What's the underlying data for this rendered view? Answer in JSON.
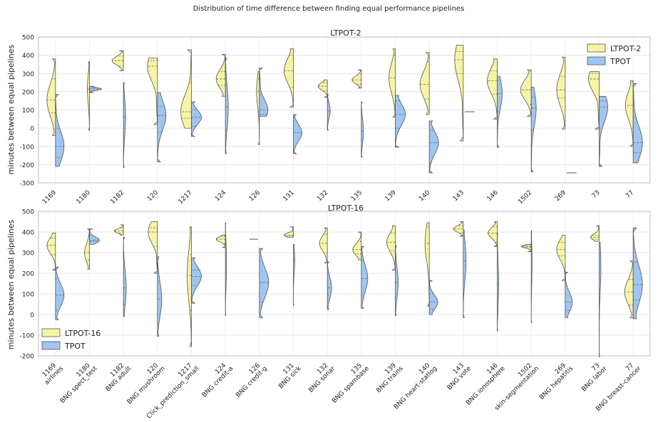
{
  "figure": {
    "suptitle": "Distribution of time difference between finding equal performance pipelines",
    "colors": {
      "ltpot": "#f7f4a6",
      "tpot": "#9fc5f0",
      "grid": "#dddddd",
      "axis": "#bbbbbb",
      "edge": "#555555"
    }
  },
  "chart_data": [
    {
      "type": "violin",
      "title": "LTPOT-2",
      "ylabel": "minutes between equal pipelines",
      "ylim": [
        -300,
        500
      ],
      "yticks": [
        -300,
        -200,
        -100,
        0,
        100,
        200,
        300,
        400,
        500
      ],
      "grid": true,
      "legend": {
        "position": "top-right",
        "entries": [
          "LTPOT-2",
          "TPOT"
        ]
      },
      "categories": [
        "1169",
        "1180",
        "1182",
        "120",
        "1217",
        "124",
        "126",
        "131",
        "132",
        "135",
        "139",
        "140",
        "143",
        "146",
        "1502",
        "269",
        "73",
        "77"
      ],
      "series": [
        {
          "name": "LTPOT-2",
          "violins": [
            {
              "min": -40,
              "max": 380,
              "w": 0.6,
              "q": [
                85,
                155,
                270
              ]
            },
            {
              "min": -10,
              "max": 365,
              "w": 0.15,
              "q": [
                125,
                215,
                310
              ]
            },
            {
              "min": 315,
              "max": 425,
              "w": 0.8,
              "q": [
                340,
                370,
                395
              ]
            },
            {
              "min": 20,
              "max": 385,
              "w": 0.7,
              "q": [
                130,
                340,
                370
              ]
            },
            {
              "min": 0,
              "max": 430,
              "w": 0.75,
              "q": [
                55,
                90,
                250
              ]
            },
            {
              "min": 175,
              "max": 405,
              "w": 0.65,
              "q": [
                235,
                270,
                310
              ]
            },
            {
              "min": -90,
              "max": 310,
              "w": 0.2,
              "q": [
                90,
                200,
                270
              ]
            },
            {
              "min": 115,
              "max": 435,
              "w": 0.65,
              "q": [
                225,
                315,
                400
              ]
            },
            {
              "min": 170,
              "max": 265,
              "w": 0.65,
              "q": [
                205,
                230,
                250
              ]
            },
            {
              "min": 220,
              "max": 320,
              "w": 0.65,
              "q": [
                240,
                265,
                295
              ]
            },
            {
              "min": 60,
              "max": 435,
              "w": 0.45,
              "q": [
                125,
                275,
                400
              ]
            },
            {
              "min": 75,
              "max": 415,
              "w": 0.65,
              "q": [
                160,
                240,
                365
              ]
            },
            {
              "min": -70,
              "max": 455,
              "w": 0.6,
              "q": [
                300,
                375,
                420
              ]
            },
            {
              "min": 50,
              "max": 380,
              "w": 0.7,
              "q": [
                185,
                260,
                315
              ]
            },
            {
              "min": 65,
              "max": 320,
              "w": 0.75,
              "q": [
                130,
                210,
                315
              ]
            },
            {
              "min": -5,
              "max": 390,
              "w": 0.6,
              "q": [
                165,
                210,
                285
              ]
            },
            {
              "min": -5,
              "max": 310,
              "w": 0.75,
              "q": [
                100,
                270,
                300
              ]
            },
            {
              "min": -100,
              "max": 260,
              "w": 0.55,
              "q": [
                0,
                125,
                255
              ]
            }
          ]
        },
        {
          "name": "TPOT",
          "violins": [
            {
              "min": -210,
              "max": 185,
              "w": 0.6,
              "q": [
                -160,
                -100,
                0
              ]
            },
            {
              "min": 195,
              "max": 230,
              "w": 0.85,
              "q": [
                205,
                215,
                220
              ]
            },
            {
              "min": -215,
              "max": 250,
              "w": 0.15,
              "q": [
                -60,
                60,
                160
              ]
            },
            {
              "min": -185,
              "max": 195,
              "w": 0.6,
              "q": [
                -20,
                70,
                120
              ]
            },
            {
              "min": -45,
              "max": 145,
              "w": 0.7,
              "q": [
                10,
                60,
                100
              ]
            },
            {
              "min": -140,
              "max": 385,
              "w": 0.2,
              "q": [
                -10,
                115,
                285
              ]
            },
            {
              "min": 65,
              "max": 330,
              "w": 0.6,
              "q": [
                75,
                100,
                180
              ]
            },
            {
              "min": -140,
              "max": 75,
              "w": 0.6,
              "q": [
                -135,
                -25,
                60
              ]
            },
            {
              "min": -10,
              "max": 185,
              "w": 0.2,
              "q": [
                45,
                95,
                145
              ]
            },
            {
              "min": -160,
              "max": 145,
              "w": 0.15,
              "q": [
                -60,
                -15,
                60
              ]
            },
            {
              "min": -105,
              "max": 180,
              "w": 0.7,
              "q": [
                0,
                75,
                150
              ]
            },
            {
              "min": -245,
              "max": 40,
              "w": 0.65,
              "q": [
                -190,
                -80,
                -10
              ]
            },
            {
              "min": 90,
              "max": 90,
              "w": 0.7,
              "q": []
            },
            {
              "min": -105,
              "max": 285,
              "w": 0.35,
              "q": [
                90,
                190,
                265
              ]
            },
            {
              "min": -240,
              "max": 225,
              "w": 0.35,
              "q": [
                -10,
                110,
                170
              ]
            },
            {
              "min": -245,
              "max": -245,
              "w": 0.7,
              "q": []
            },
            {
              "min": -210,
              "max": 175,
              "w": 0.6,
              "q": [
                0,
                115,
                150
              ]
            },
            {
              "min": -190,
              "max": 245,
              "w": 0.65,
              "q": [
                -135,
                -80,
                60
              ]
            }
          ]
        }
      ]
    },
    {
      "type": "violin",
      "title": "LTPOT-16",
      "ylabel": "minutes between equal pipelines",
      "ylim": [
        -200,
        500
      ],
      "yticks": [
        -200,
        -100,
        0,
        100,
        200,
        300,
        400,
        500
      ],
      "grid": true,
      "legend": {
        "position": "bottom-left",
        "entries": [
          "LTPOT-16",
          "TPOT"
        ]
      },
      "categories": [
        "1169\nairlines",
        "1180\nBNG spect_test",
        "1182\nBNG adult",
        "120\nBNG mushroom",
        "1217\nClick_prediction_small",
        "124\nBNG credit-a",
        "126\nBNG credit-g",
        "131\nBNG sick",
        "132\nBNG sonar",
        "135\nBNG spambase",
        "139\nBNG trains",
        "140\nBNG heart-statlog",
        "143\nBNG vote",
        "146\nBNG ionosphere",
        "1502\nskin-segmentation",
        "269\nBNG hepatitis",
        "73\nBNG labor",
        "77\nBNG breast-cancer"
      ],
      "series": [
        {
          "name": "LTPOT-16",
          "violins": [
            {
              "min": 215,
              "max": 395,
              "w": 0.6,
              "q": [
                290,
                335,
                370
              ]
            },
            {
              "min": 220,
              "max": 415,
              "w": 0.35,
              "q": [
                265,
                300,
                380
              ]
            },
            {
              "min": 385,
              "max": 435,
              "w": 0.65,
              "q": [
                395,
                405,
                420
              ]
            },
            {
              "min": 200,
              "max": 450,
              "w": 0.65,
              "q": [
                330,
                400,
                420
              ]
            },
            {
              "min": -155,
              "max": 425,
              "w": 0.3,
              "q": [
                20,
                190,
                290
              ]
            },
            {
              "min": 325,
              "max": 385,
              "w": 0.65,
              "q": [
                345,
                365,
                380
              ]
            },
            {
              "min": 365,
              "max": 365,
              "w": 0.6,
              "q": []
            },
            {
              "min": 375,
              "max": 425,
              "w": 0.65,
              "q": [
                380,
                385,
                400
              ]
            },
            {
              "min": 250,
              "max": 420,
              "w": 0.55,
              "q": [
                300,
                345,
                390
              ]
            },
            {
              "min": 265,
              "max": 400,
              "w": 0.6,
              "q": [
                295,
                315,
                355
              ]
            },
            {
              "min": 215,
              "max": 430,
              "w": 0.6,
              "q": [
                310,
                350,
                395
              ]
            },
            {
              "min": 40,
              "max": 445,
              "w": 0.3,
              "q": [
                190,
                345,
                425
              ]
            },
            {
              "min": 380,
              "max": 450,
              "w": 0.7,
              "q": [
                395,
                415,
                430
              ]
            },
            {
              "min": 330,
              "max": 450,
              "w": 0.65,
              "q": [
                350,
                395,
                425
              ]
            },
            {
              "min": 305,
              "max": 340,
              "w": 0.7,
              "q": [
                325,
                330,
                335
              ]
            },
            {
              "min": 165,
              "max": 385,
              "w": 0.6,
              "q": [
                285,
                315,
                350
              ]
            },
            {
              "min": 355,
              "max": 430,
              "w": 0.6,
              "q": [
                365,
                375,
                385
              ]
            },
            {
              "min": -15,
              "max": 260,
              "w": 0.6,
              "q": [
                45,
                110,
                170
              ]
            }
          ]
        },
        {
          "name": "TPOT",
          "violins": [
            {
              "min": -25,
              "max": 230,
              "w": 0.6,
              "q": [
                20,
                95,
                175
              ]
            },
            {
              "min": 340,
              "max": 415,
              "w": 0.7,
              "q": [
                355,
                360,
                385
              ]
            },
            {
              "min": -10,
              "max": 375,
              "w": 0.2,
              "q": [
                50,
                130,
                290
              ]
            },
            {
              "min": -105,
              "max": 280,
              "w": 0.3,
              "q": [
                -45,
                75,
                160
              ]
            },
            {
              "min": 55,
              "max": 275,
              "w": 0.7,
              "q": [
                140,
                185,
                215
              ]
            },
            {
              "min": -5,
              "max": 445,
              "w": 0.08,
              "q": [
                130,
                240,
                340
              ]
            },
            {
              "min": -15,
              "max": 320,
              "w": 0.65,
              "q": [
                60,
                155,
                255
              ]
            },
            {
              "min": 45,
              "max": 340,
              "w": 0.1,
              "q": [
                175,
                265,
                315
              ]
            },
            {
              "min": 25,
              "max": 255,
              "w": 0.3,
              "q": [
                95,
                130,
                205
              ]
            },
            {
              "min": 30,
              "max": 330,
              "w": 0.45,
              "q": [
                90,
                175,
                260
              ]
            },
            {
              "min": -5,
              "max": 335,
              "w": 0.2,
              "q": [
                40,
                155,
                275
              ]
            },
            {
              "min": 0,
              "max": 165,
              "w": 0.6,
              "q": [
                25,
                60,
                100
              ]
            },
            {
              "min": -15,
              "max": 410,
              "w": 0.2,
              "q": [
                50,
                260,
                350
              ]
            },
            {
              "min": -80,
              "max": 395,
              "w": 0.1,
              "q": [
                10,
                150,
                300
              ]
            },
            {
              "min": -40,
              "max": 405,
              "w": 0.06,
              "q": [
                100,
                250,
                340
              ]
            },
            {
              "min": -15,
              "max": 205,
              "w": 0.5,
              "q": [
                20,
                60,
                145
              ]
            },
            {
              "min": -205,
              "max": 350,
              "w": 0.12,
              "q": [
                50,
                230,
                330
              ]
            },
            {
              "min": -20,
              "max": 420,
              "w": 0.65,
              "q": [
                70,
                145,
                255
              ]
            }
          ]
        }
      ]
    }
  ]
}
